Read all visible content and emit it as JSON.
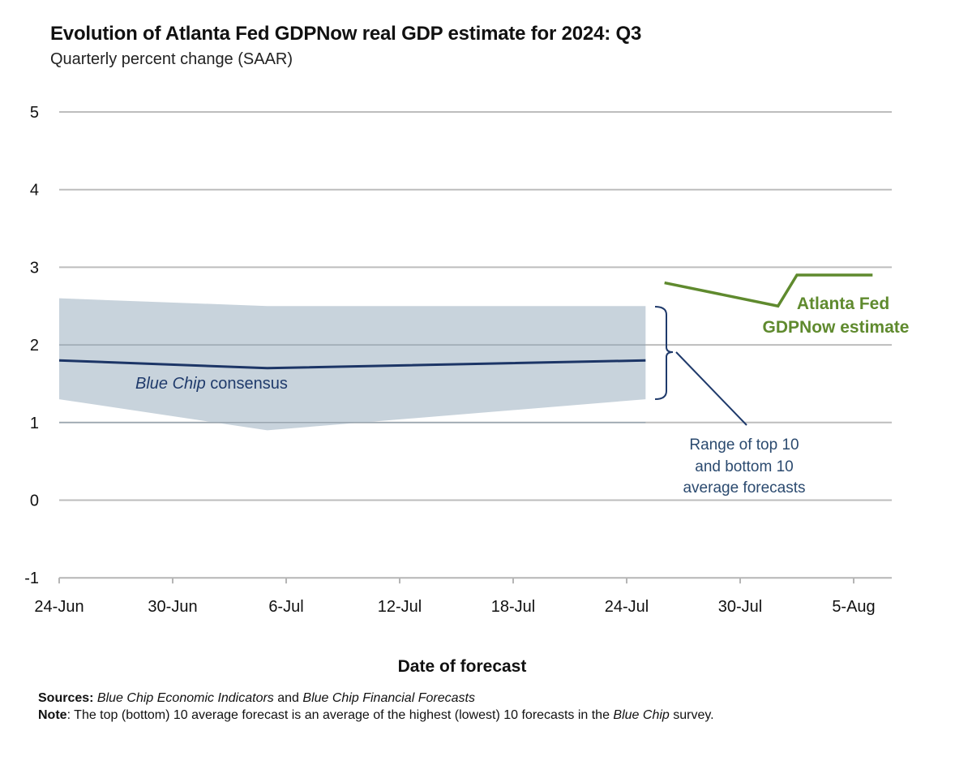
{
  "header": {
    "title": "Evolution of Atlanta Fed GDPNow real GDP estimate for 2024: Q3",
    "subtitle": "Quarterly percent change (SAAR)"
  },
  "colors": {
    "gdpnow": "#5f8a2e",
    "consensus": "#1c3566",
    "band": "#c8d3dc",
    "annotation": "#2b4a6f",
    "grid": "#bdbdbd"
  },
  "chart_data": {
    "type": "line",
    "title": "Evolution of Atlanta Fed GDPNow real GDP estimate for 2024: Q3",
    "subtitle": "Quarterly percent change (SAAR)",
    "xlabel": "Date of forecast",
    "ylabel": "",
    "ylim": [
      -1,
      5
    ],
    "yticks": [
      5,
      4,
      3,
      2,
      1,
      0,
      -1
    ],
    "x_range_days": [
      0,
      44
    ],
    "x_origin": "24-Jun",
    "xticks": [
      {
        "day": 0,
        "label": "24-Jun"
      },
      {
        "day": 6,
        "label": "30-Jun"
      },
      {
        "day": 12,
        "label": "6-Jul"
      },
      {
        "day": 18,
        "label": "12-Jul"
      },
      {
        "day": 24,
        "label": "18-Jul"
      },
      {
        "day": 30,
        "label": "24-Jul"
      },
      {
        "day": 36,
        "label": "30-Jul"
      },
      {
        "day": 42,
        "label": "5-Aug"
      }
    ],
    "grid": true,
    "series": [
      {
        "name": "Atlanta Fed GDPNow estimate",
        "kind": "line",
        "x_days": [
          32,
          38,
          39,
          43
        ],
        "x_labels": [
          "26-Jul",
          "1-Aug",
          "2-Aug",
          "6-Aug"
        ],
        "values": [
          2.8,
          2.5,
          2.9,
          2.9
        ]
      },
      {
        "name": "Blue Chip consensus",
        "kind": "line",
        "x_days": [
          0,
          11,
          31
        ],
        "x_labels": [
          "24-Jun",
          "5-Jul",
          "25-Jul"
        ],
        "values": [
          1.8,
          1.7,
          1.8
        ]
      },
      {
        "name": "Range of top 10 and bottom 10 average forecasts",
        "kind": "band",
        "x_days": [
          0,
          11,
          31
        ],
        "x_labels": [
          "24-Jun",
          "5-Jul",
          "25-Jul"
        ],
        "upper": [
          2.6,
          2.5,
          2.5
        ],
        "lower": [
          1.3,
          0.9,
          1.3
        ]
      }
    ],
    "annotations": {
      "gdpnow_label": [
        "Atlanta Fed",
        "GDPNow estimate"
      ],
      "consensus_label_italic": "Blue Chip",
      "consensus_label_rest": " consensus",
      "range_label": [
        "Range of top 10",
        "and bottom 10",
        "average forecasts"
      ]
    }
  },
  "footer": {
    "sources_label": "Sources:",
    "sources_italic_1": "Blue Chip Economic Indicators",
    "sources_and": " and ",
    "sources_italic_2": "Blue Chip Financial Forecasts",
    "note_label": "Note",
    "note_text": ": The top (bottom) 10 average forecast is an average of the highest (lowest) 10 forecasts in the ",
    "note_italic": "Blue Chip",
    "note_end": " survey."
  }
}
